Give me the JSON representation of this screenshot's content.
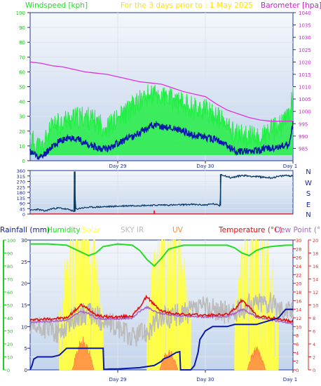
{
  "chart_data": [
    {
      "type": "line",
      "title": "For the 3 days prior to : 1 May 2025",
      "ylabel_left": "Windspeed [kph]",
      "ylabel_right": "Barometer [hpa]",
      "x_ticks": [
        "Day 29",
        "Day 30",
        "Day 1"
      ],
      "x_range": [
        0,
        72
      ],
      "ylim_left": [
        0,
        100
      ],
      "ylim_right": [
        980,
        1040
      ],
      "yticks_left": [
        0,
        10,
        20,
        30,
        40,
        50,
        60,
        70,
        80,
        90,
        100
      ],
      "yticks_right": [
        985,
        990,
        995,
        1000,
        1005,
        1010,
        1015,
        1020,
        1025,
        1030,
        1035,
        1040
      ],
      "colors": {
        "gust": "#22ee44",
        "avg": "#0a1aa8",
        "baro": "#dd33dd",
        "bg": "#c8d8ee"
      },
      "series": [
        {
          "name": "Barometer [hpa]",
          "axis": "right",
          "x": [
            0,
            3,
            6,
            9,
            12,
            15,
            18,
            21,
            24,
            27,
            30,
            33,
            36,
            39,
            42,
            45,
            48,
            51,
            54,
            57,
            60,
            63,
            66,
            69,
            71,
            72
          ],
          "y": [
            1020,
            1019.5,
            1018.5,
            1018,
            1017,
            1016,
            1015.5,
            1015,
            1014,
            1013,
            1012,
            1011.5,
            1011,
            1009.5,
            1008,
            1007,
            1006,
            1003,
            1000.5,
            999,
            997.5,
            996.5,
            996,
            996,
            996,
            996
          ]
        },
        {
          "name": "Gust",
          "axis": "left",
          "x": [
            0,
            3,
            6,
            9,
            12,
            15,
            18,
            21,
            24,
            27,
            30,
            33,
            36,
            39,
            42,
            45,
            48,
            51,
            54,
            57,
            60,
            63,
            66,
            69,
            71,
            72
          ],
          "y": [
            15,
            8,
            22,
            27,
            28,
            30,
            26,
            22,
            28,
            34,
            40,
            45,
            43,
            41,
            38,
            36,
            34,
            30,
            23,
            17,
            16,
            15,
            20,
            24,
            32,
            44
          ]
        },
        {
          "name": "Average",
          "axis": "left",
          "x": [
            0,
            3,
            6,
            9,
            12,
            15,
            18,
            21,
            24,
            27,
            30,
            33,
            36,
            39,
            42,
            45,
            48,
            51,
            54,
            57,
            60,
            63,
            66,
            69,
            71,
            72
          ],
          "y": [
            6,
            2,
            10,
            14,
            16,
            12,
            9,
            8,
            12,
            15,
            19,
            24,
            23,
            22,
            20,
            17,
            16,
            14,
            10,
            6,
            7,
            7,
            9,
            10,
            11,
            25
          ]
        }
      ]
    },
    {
      "type": "line",
      "yticks": [
        0,
        45,
        90,
        135,
        180,
        225,
        270,
        315,
        360
      ],
      "ylim": [
        0,
        360
      ],
      "x_range": [
        0,
        72
      ],
      "compass": [
        "N",
        "W",
        "S",
        "E",
        "N"
      ],
      "colors": {
        "dir": "#0a3a6a",
        "bg": "#c8d8ee",
        "red": "#ee2222"
      },
      "series": [
        {
          "name": "Wind direction",
          "x": [
            0,
            2,
            4,
            6,
            8,
            10,
            11,
            12,
            12.2,
            12.4,
            14,
            16,
            20,
            24,
            28,
            32,
            36,
            40,
            44,
            48,
            50,
            52,
            52.1,
            52.2,
            55,
            58,
            62,
            66,
            70,
            72
          ],
          "y": [
            30,
            40,
            25,
            45,
            50,
            40,
            35,
            20,
            352,
            40,
            50,
            55,
            60,
            65,
            70,
            72,
            75,
            75,
            80,
            75,
            85,
            70,
            90,
            330,
            300,
            320,
            310,
            300,
            320,
            315
          ]
        }
      ],
      "red_marks": [
        34
      ]
    },
    {
      "type": "line",
      "x_ticks": [
        "Day 29",
        "Day 30",
        "Day 1"
      ],
      "x_range": [
        0,
        72
      ],
      "legend": [
        "Rainfall (mm)",
        "Humidity",
        "Solar",
        "SKY IR",
        "UV",
        "Temperature (°C)",
        "Dew Point (°C)"
      ],
      "yticks_humidity": [
        0,
        10,
        20,
        30,
        40,
        50,
        60,
        70,
        80,
        90,
        100
      ],
      "yticks_rain": [
        0,
        5,
        10,
        15,
        20,
        25,
        30
      ],
      "yticks_temp": [
        0,
        2,
        4,
        6,
        8,
        10,
        12,
        14,
        16,
        18,
        20,
        22,
        24,
        26,
        28,
        30
      ],
      "yticks_dew": [
        0,
        2,
        4,
        6,
        8,
        10,
        12,
        14,
        16,
        18,
        20
      ],
      "ylim_humidity": [
        0,
        100
      ],
      "ylim_rain": [
        0,
        30
      ],
      "ylim_temp": [
        0,
        30
      ],
      "colors": {
        "rain": "#0a1aa8",
        "humidity": "#22dd22",
        "solar": "#ffff44",
        "skyir": "#bbbbbb",
        "uv": "#ff8844",
        "temp": "#dd1111",
        "dew": "#aa66cc",
        "bg": "#c8d8ee"
      },
      "series": [
        {
          "name": "Humidity",
          "axis": "humidity",
          "x": [
            0,
            5,
            10,
            13,
            16,
            18,
            20,
            24,
            28,
            30,
            32,
            34,
            36,
            38,
            42,
            48,
            54,
            56,
            58,
            60,
            62,
            64,
            66,
            70,
            72
          ],
          "y": [
            97,
            97,
            96,
            92,
            88,
            90,
            95,
            97,
            96,
            92,
            85,
            80,
            86,
            93,
            96,
            96,
            96,
            94,
            90,
            88,
            92,
            94,
            95,
            96,
            96
          ]
        },
        {
          "name": "Temperature (°C)",
          "axis": "temp",
          "x": [
            0,
            5,
            10,
            12,
            14,
            16,
            18,
            20,
            24,
            28,
            30,
            32,
            34,
            36,
            38,
            42,
            48,
            54,
            56,
            58,
            60,
            62,
            64,
            66,
            70,
            72
          ],
          "y": [
            11.5,
            11.8,
            12,
            13.5,
            15,
            14,
            12.8,
            12.3,
            12.2,
            12.5,
            14.5,
            17,
            15,
            13.6,
            13.2,
            12.8,
            12.6,
            12.8,
            14,
            16,
            14.5,
            12.6,
            12.2,
            12,
            11.5,
            11
          ]
        },
        {
          "name": "Dew Point (°C)",
          "axis": "temp",
          "x": [
            0,
            5,
            10,
            12,
            14,
            16,
            18,
            20,
            24,
            28,
            30,
            32,
            34,
            36,
            38,
            42,
            48,
            54,
            56,
            58,
            60,
            62,
            64,
            66,
            70,
            72
          ],
          "y": [
            11,
            11.2,
            11.5,
            12.5,
            13.5,
            13,
            12,
            11.8,
            11.8,
            12,
            13.5,
            14.5,
            13.5,
            13,
            12.8,
            12.4,
            12.2,
            12.4,
            13,
            14,
            13.2,
            12.2,
            11.8,
            11.5,
            11,
            10.5
          ]
        },
        {
          "name": "SKY IR",
          "axis": "humidity",
          "x": [
            0,
            4,
            8,
            12,
            16,
            20,
            24,
            28,
            32,
            36,
            40,
            44,
            48,
            52,
            56,
            60,
            64,
            68,
            72
          ],
          "y": [
            30,
            33,
            28,
            40,
            44,
            38,
            32,
            25,
            30,
            40,
            42,
            45,
            48,
            45,
            43,
            50,
            53,
            48,
            45
          ]
        },
        {
          "name": "Rainfall (mm)",
          "axis": "rain",
          "x": [
            0,
            0.5,
            1,
            2,
            3,
            6,
            7,
            8,
            9,
            10,
            12,
            16,
            20,
            20.2,
            22,
            24,
            26,
            30,
            34,
            36,
            36.5,
            38,
            39,
            40,
            41,
            41.2,
            44,
            45,
            46,
            46.5,
            48,
            50,
            54,
            56,
            58,
            62,
            64,
            66,
            68,
            70,
            72
          ],
          "y": [
            0,
            1,
            2.5,
            3,
            3,
            3,
            3.2,
            3.4,
            4.2,
            5,
            5,
            5,
            5,
            0.1,
            0.2,
            0.2,
            0.3,
            0.5,
            1,
            2,
            2.5,
            3,
            3.5,
            4,
            4.2,
            0,
            0,
            1,
            4,
            7,
            9,
            10,
            10,
            10.5,
            10.5,
            10.5,
            11,
            11.5,
            12,
            14,
            14
          ]
        }
      ],
      "solar_days": [
        {
          "start": 8,
          "end": 20,
          "peak": 31
        },
        {
          "start": 32,
          "end": 44,
          "peak": 29
        },
        {
          "start": 56,
          "end": 68,
          "peak": 31
        }
      ],
      "uv_days": [
        {
          "start": 11.5,
          "end": 17.5,
          "peak": 7
        },
        {
          "start": 35.5,
          "end": 40.5,
          "peak": 4.5
        },
        {
          "start": 59.5,
          "end": 64.5,
          "peak": 5
        }
      ]
    }
  ]
}
